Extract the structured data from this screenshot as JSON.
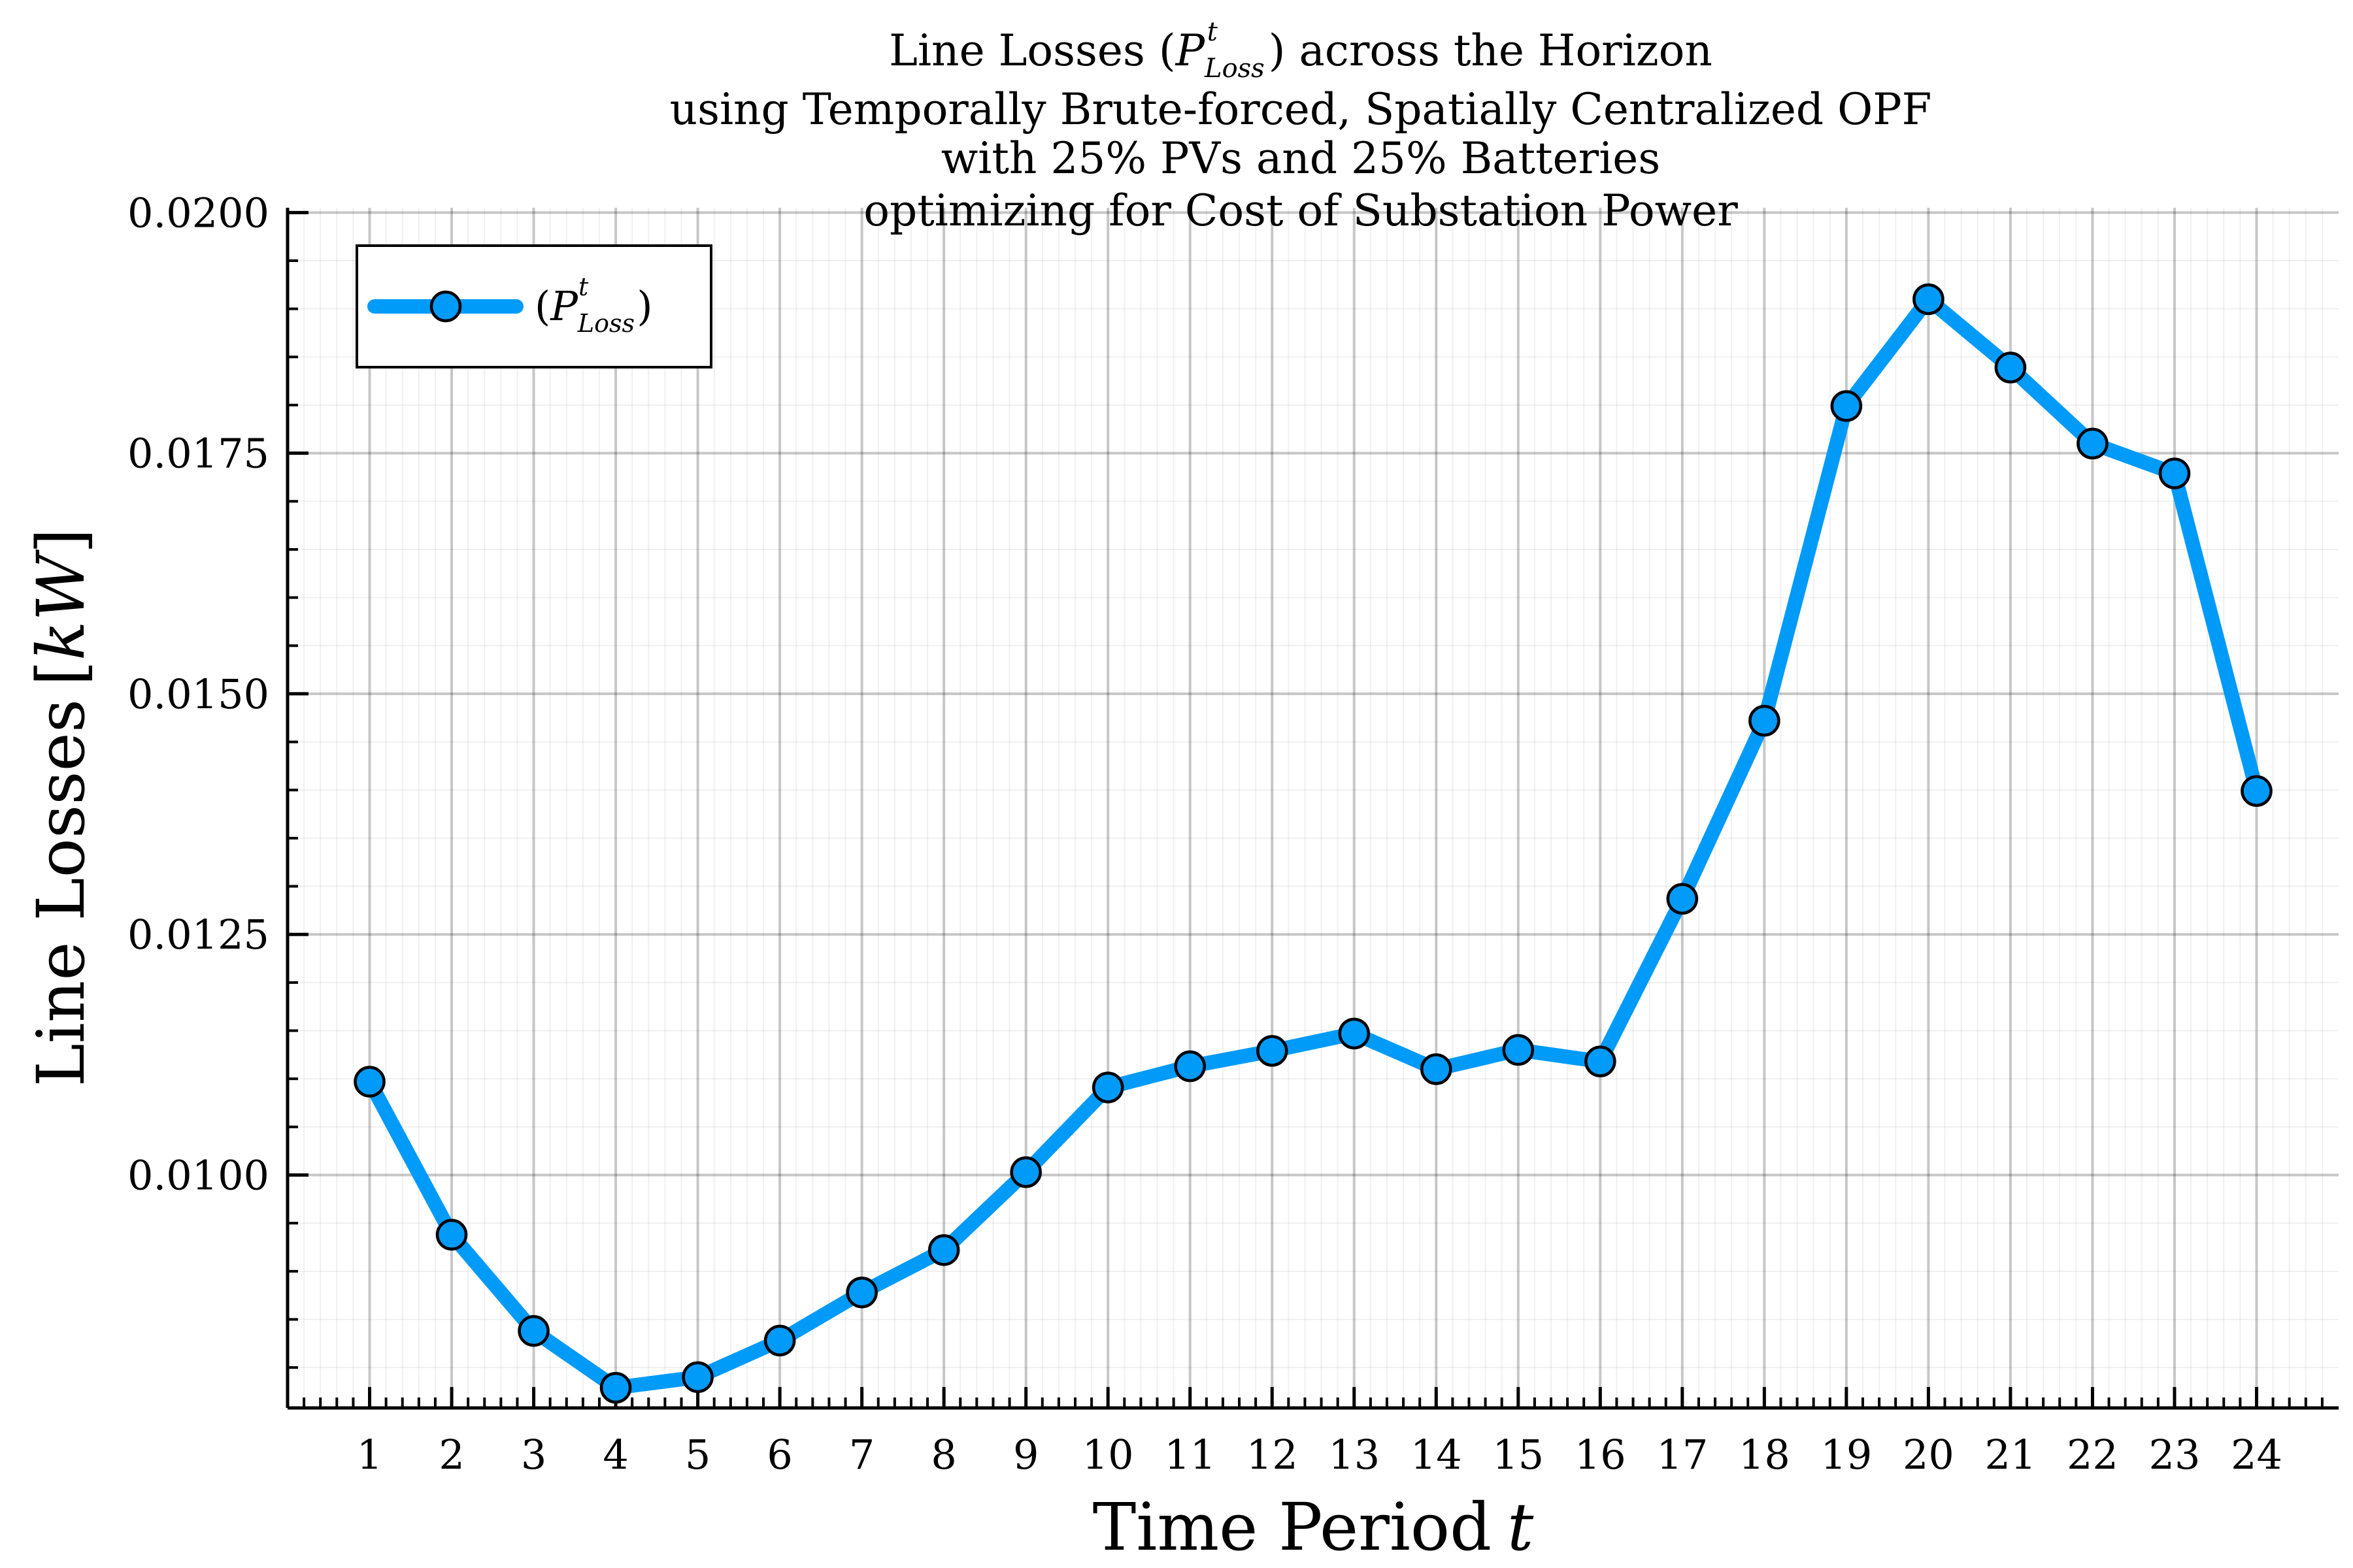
{
  "chart_data": {
    "type": "line",
    "title_lines": [
      "Line Losses (P_Loss^t) across the Horizon",
      "using Temporally Brute-forced, Spatially Centralized OPF",
      "with 25% PVs and 25% Batteries",
      "optimizing for Cost of Substation Power"
    ],
    "title_math": {
      "base": "P",
      "sup": "t",
      "sub": "Loss"
    },
    "xlabel": "Time Period",
    "xlabel_var": "t",
    "ylabel": "Line Losses",
    "ylabel_unit": "kW",
    "x": [
      1,
      2,
      3,
      4,
      5,
      6,
      7,
      8,
      9,
      10,
      11,
      12,
      13,
      14,
      15,
      16,
      17,
      18,
      19,
      20,
      21,
      22,
      23,
      24
    ],
    "series": [
      {
        "name": "(P_Loss^t)",
        "color": "#009af9",
        "values": [
          0.01097,
          0.00938,
          0.00838,
          0.00779,
          0.0079,
          0.00828,
          0.00878,
          0.00922,
          0.01003,
          0.01091,
          0.01113,
          0.01129,
          0.01147,
          0.0111,
          0.0113,
          0.01118,
          0.01287,
          0.01472,
          0.01799,
          0.0191,
          0.01839,
          0.0176,
          0.01729,
          0.01399
        ]
      }
    ],
    "x_ticks": [
      "1",
      "2",
      "3",
      "4",
      "5",
      "6",
      "7",
      "8",
      "9",
      "10",
      "11",
      "12",
      "13",
      "14",
      "15",
      "16",
      "17",
      "18",
      "19",
      "20",
      "21",
      "22",
      "23",
      "24"
    ],
    "y_ticks": [
      "0.0100",
      "0.0125",
      "0.0150",
      "0.0175",
      "0.0200"
    ],
    "y_tick_values": [
      0.01,
      0.0125,
      0.015,
      0.0175,
      0.02
    ],
    "xlim": [
      0,
      25
    ],
    "ylim": [
      0.00758,
      0.02005
    ],
    "grid": true,
    "legend_position": "top-left",
    "marker": "circle"
  }
}
